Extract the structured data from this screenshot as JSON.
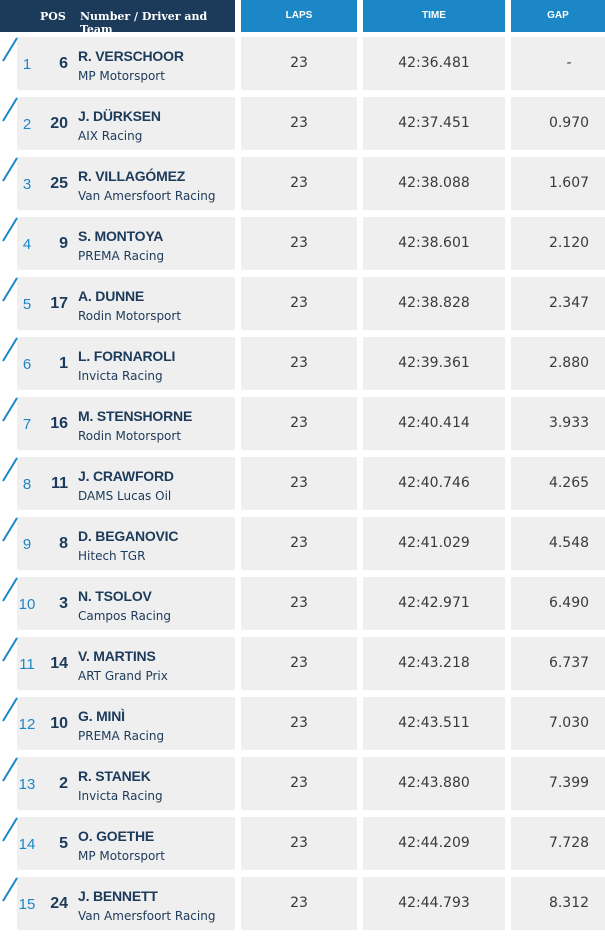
{
  "header": {
    "pos": "POS",
    "driver_team": "Number / Driver and Team",
    "laps": "LAPS",
    "time": "TIME",
    "gap": "GAP"
  },
  "colors": {
    "header_dark": "#1c3a5a",
    "header_blue": "#1b87c6",
    "row_bg": "#efefef",
    "accent": "#1b87c6"
  },
  "rows": [
    {
      "pos": "1",
      "number": "6",
      "driver": "R. VERSCHOOR",
      "team": "MP Motorsport",
      "laps": "23",
      "time": "42:36.481",
      "gap": "-"
    },
    {
      "pos": "2",
      "number": "20",
      "driver": "J. DÜRKSEN",
      "team": "AIX Racing",
      "laps": "23",
      "time": "42:37.451",
      "gap": "0.970"
    },
    {
      "pos": "3",
      "number": "25",
      "driver": "R. VILLAGÓMEZ",
      "team": "Van Amersfoort Racing",
      "laps": "23",
      "time": "42:38.088",
      "gap": "1.607"
    },
    {
      "pos": "4",
      "number": "9",
      "driver": "S. MONTOYA",
      "team": "PREMA Racing",
      "laps": "23",
      "time": "42:38.601",
      "gap": "2.120"
    },
    {
      "pos": "5",
      "number": "17",
      "driver": "A. DUNNE",
      "team": "Rodin Motorsport",
      "laps": "23",
      "time": "42:38.828",
      "gap": "2.347"
    },
    {
      "pos": "6",
      "number": "1",
      "driver": "L. FORNAROLI",
      "team": "Invicta Racing",
      "laps": "23",
      "time": "42:39.361",
      "gap": "2.880"
    },
    {
      "pos": "7",
      "number": "16",
      "driver": "M. STENSHORNE",
      "team": "Rodin Motorsport",
      "laps": "23",
      "time": "42:40.414",
      "gap": "3.933"
    },
    {
      "pos": "8",
      "number": "11",
      "driver": "J. CRAWFORD",
      "team": "DAMS Lucas Oil",
      "laps": "23",
      "time": "42:40.746",
      "gap": "4.265"
    },
    {
      "pos": "9",
      "number": "8",
      "driver": "D. BEGANOVIC",
      "team": "Hitech TGR",
      "laps": "23",
      "time": "42:41.029",
      "gap": "4.548"
    },
    {
      "pos": "10",
      "number": "3",
      "driver": "N. TSOLOV",
      "team": "Campos Racing",
      "laps": "23",
      "time": "42:42.971",
      "gap": "6.490"
    },
    {
      "pos": "11",
      "number": "14",
      "driver": "V. MARTINS",
      "team": "ART Grand Prix",
      "laps": "23",
      "time": "42:43.218",
      "gap": "6.737"
    },
    {
      "pos": "12",
      "number": "10",
      "driver": "G. MINÌ",
      "team": "PREMA Racing",
      "laps": "23",
      "time": "42:43.511",
      "gap": "7.030"
    },
    {
      "pos": "13",
      "number": "2",
      "driver": "R. STANEK",
      "team": "Invicta Racing",
      "laps": "23",
      "time": "42:43.880",
      "gap": "7.399"
    },
    {
      "pos": "14",
      "number": "5",
      "driver": "O. GOETHE",
      "team": "MP Motorsport",
      "laps": "23",
      "time": "42:44.209",
      "gap": "7.728"
    },
    {
      "pos": "15",
      "number": "24",
      "driver": "J. BENNETT",
      "team": "Van Amersfoort Racing",
      "laps": "23",
      "time": "42:44.793",
      "gap": "8.312"
    }
  ]
}
